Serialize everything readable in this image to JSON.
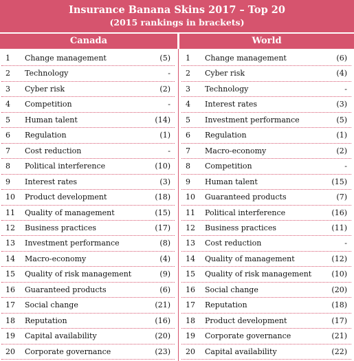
{
  "header": {
    "title": "Insurance Banana Skins 2017 – Top 20",
    "subtitle": "(2015 rankings in brackets)"
  },
  "table": {
    "columns": [
      "Canada",
      "World"
    ],
    "canada": [
      [
        1,
        "Change management",
        "(5)"
      ],
      [
        2,
        "Technology",
        "-"
      ],
      [
        3,
        "Cyber risk",
        "(2)"
      ],
      [
        4,
        "Competition",
        "-"
      ],
      [
        5,
        "Human talent",
        "(14)"
      ],
      [
        6,
        "Regulation",
        "(1)"
      ],
      [
        7,
        "Cost reduction",
        "-"
      ],
      [
        8,
        "Political interference",
        "(10)"
      ],
      [
        9,
        "Interest rates",
        "(3)"
      ],
      [
        10,
        "Product development",
        "(18)"
      ],
      [
        11,
        "Quality of management",
        "(15)"
      ],
      [
        12,
        "Business practices",
        "(17)"
      ],
      [
        13,
        "Investment performance",
        "(8)"
      ],
      [
        14,
        "Macro-economy",
        "(4)"
      ],
      [
        15,
        "Quality of risk management",
        "(9)"
      ],
      [
        16,
        "Guaranteed products",
        "(6)"
      ],
      [
        17,
        "Social change",
        "(21)"
      ],
      [
        18,
        "Reputation",
        "(16)"
      ],
      [
        19,
        "Capital availability",
        "(20)"
      ],
      [
        20,
        "Corporate governance",
        "(23)"
      ]
    ],
    "world": [
      [
        1,
        "Change management",
        "(6)"
      ],
      [
        2,
        "Cyber risk",
        "(4)"
      ],
      [
        3,
        "Technology",
        "-"
      ],
      [
        4,
        "Interest rates",
        "(3)"
      ],
      [
        5,
        "Investment performance",
        "(5)"
      ],
      [
        6,
        "Regulation",
        "(1)"
      ],
      [
        7,
        "Macro-economy",
        "(2)"
      ],
      [
        8,
        "Competition",
        "-"
      ],
      [
        9,
        "Human talent",
        "(15)"
      ],
      [
        10,
        "Guaranteed products",
        "(7)"
      ],
      [
        11,
        "Political interference",
        "(16)"
      ],
      [
        12,
        "Business practices",
        "(11)"
      ],
      [
        13,
        "Cost reduction",
        "-"
      ],
      [
        14,
        "Quality of management",
        "(12)"
      ],
      [
        15,
        "Quality of risk management",
        "(10)"
      ],
      [
        16,
        "Social change",
        "(20)"
      ],
      [
        17,
        "Reputation",
        "(18)"
      ],
      [
        18,
        "Product development",
        "(17)"
      ],
      [
        19,
        "Corporate governance",
        "(21)"
      ],
      [
        20,
        "Capital availability",
        "(22)"
      ]
    ]
  }
}
